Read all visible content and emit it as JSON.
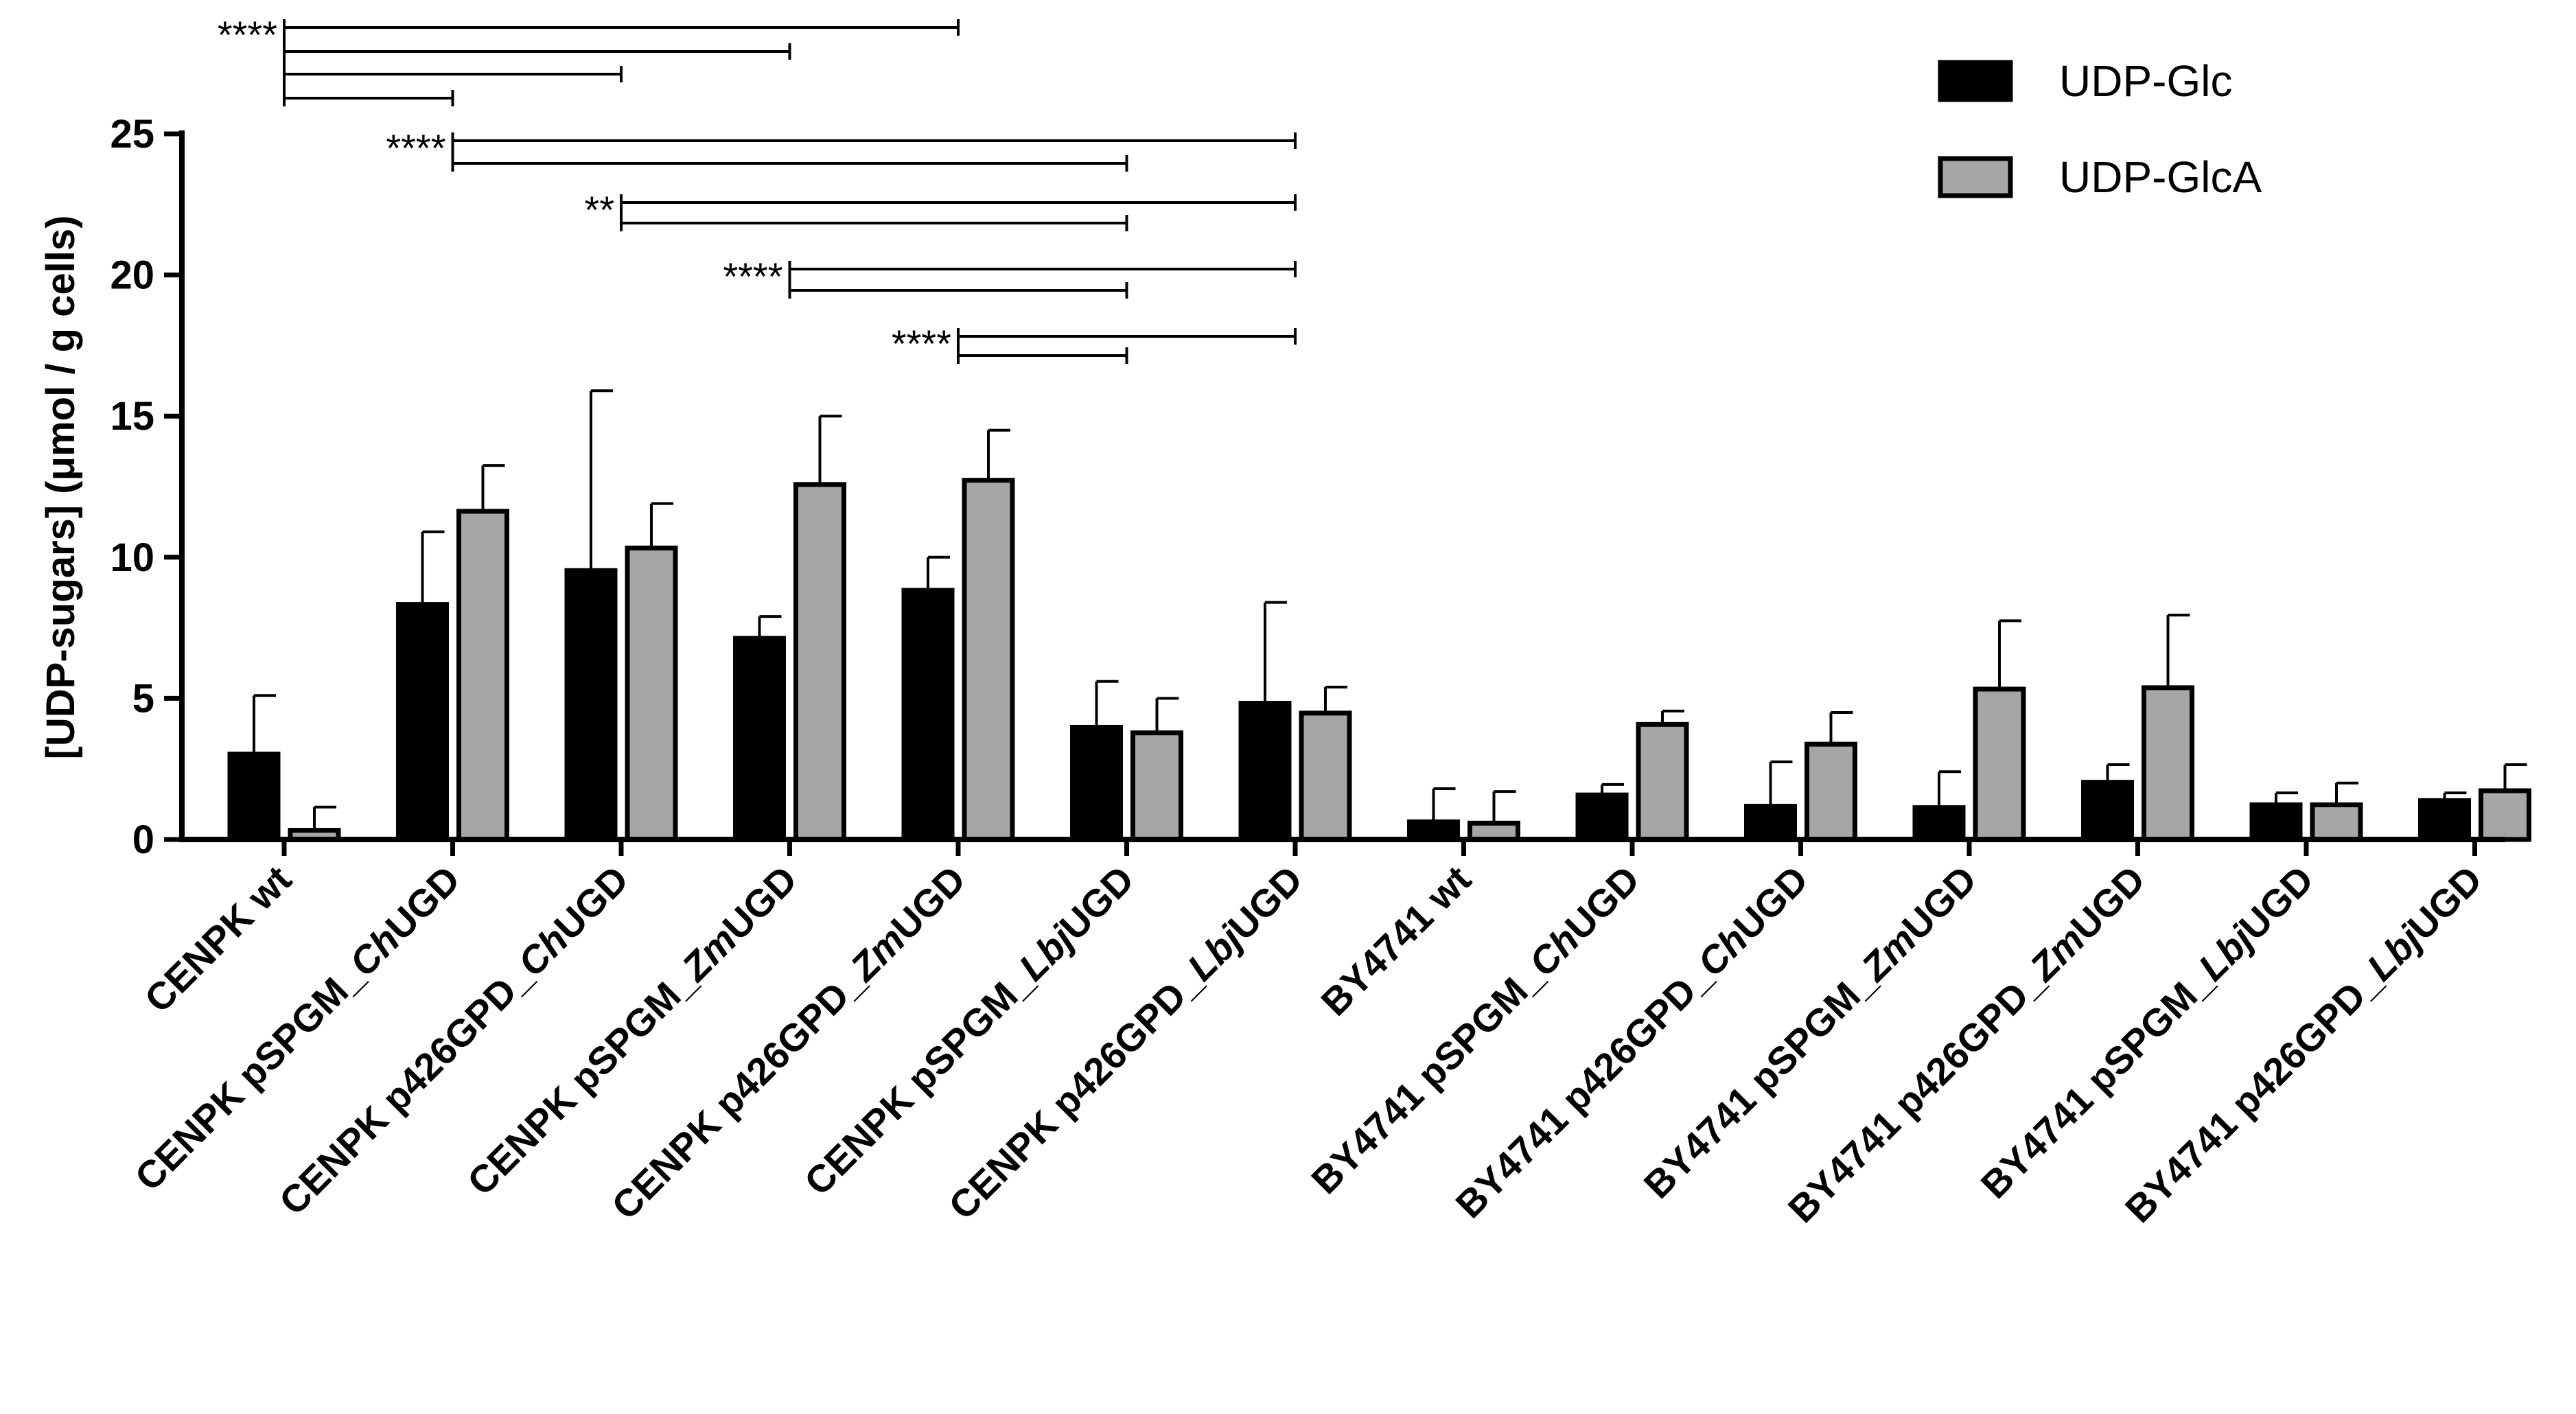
{
  "colors": {
    "udp_glc": "#000000",
    "udp_glca": "#a6a6a6",
    "axis": "#000000"
  },
  "chart_data": {
    "type": "bar",
    "title": "",
    "xlabel": "",
    "ylabel": "[UDP-sugars] (μmol / g cells)",
    "ylim": [
      0,
      25
    ],
    "yticks": [
      0,
      5,
      10,
      15,
      20,
      25
    ],
    "legend_position": "top-right",
    "categories": [
      {
        "label": "CENPK wt",
        "parts": [
          {
            "t": "CENPK wt",
            "i": false
          }
        ]
      },
      {
        "label": "CENPK pSPGM_ChUGD",
        "parts": [
          {
            "t": "CENPK pSPGM_",
            "i": false
          },
          {
            "t": "Ch",
            "i": true
          },
          {
            "t": "UGD",
            "i": false
          }
        ]
      },
      {
        "label": "CENPK p426GPD_ChUGD",
        "parts": [
          {
            "t": "CENPK p426GPD_",
            "i": false
          },
          {
            "t": "Ch",
            "i": true
          },
          {
            "t": "UGD",
            "i": false
          }
        ]
      },
      {
        "label": "CENPK pSPGM_ZmUGD",
        "parts": [
          {
            "t": "CENPK pSPGM_",
            "i": false
          },
          {
            "t": "Zm",
            "i": true
          },
          {
            "t": "UGD",
            "i": false
          }
        ]
      },
      {
        "label": "CENPK p426GPD_ZmUGD",
        "parts": [
          {
            "t": "CENPK p426GPD_",
            "i": false
          },
          {
            "t": "Zm",
            "i": true
          },
          {
            "t": "UGD",
            "i": false
          }
        ]
      },
      {
        "label": "CENPK pSPGM_LbjUGD",
        "parts": [
          {
            "t": "CENPK pSPGM_",
            "i": false
          },
          {
            "t": "Lbj",
            "i": true
          },
          {
            "t": "UGD",
            "i": false
          }
        ]
      },
      {
        "label": "CENPK p426GPD_LbjUGD",
        "parts": [
          {
            "t": "CENPK p426GPD_",
            "i": false
          },
          {
            "t": "Lbj",
            "i": true
          },
          {
            "t": "UGD",
            "i": false
          }
        ]
      },
      {
        "label": "BY4741 wt",
        "parts": [
          {
            "t": "BY4741 wt",
            "i": false
          }
        ]
      },
      {
        "label": "BY4741 pSPGM_ChUGD",
        "parts": [
          {
            "t": "BY4741 pSPGM_",
            "i": false
          },
          {
            "t": "Ch",
            "i": true
          },
          {
            "t": "UGD",
            "i": false
          }
        ]
      },
      {
        "label": "BY4741 p426GPD_ChUGD",
        "parts": [
          {
            "t": "BY4741 p426GPD_",
            "i": false
          },
          {
            "t": "Ch",
            "i": true
          },
          {
            "t": "UGD",
            "i": false
          }
        ]
      },
      {
        "label": "BY4741 pSPGM_ZmUGD",
        "parts": [
          {
            "t": "BY4741 pSPGM_",
            "i": false
          },
          {
            "t": "Zm",
            "i": true
          },
          {
            "t": "UGD",
            "i": false
          }
        ]
      },
      {
        "label": "BY4741 p426GPD_ZmUGD",
        "parts": [
          {
            "t": "BY4741 p426GPD_",
            "i": false
          },
          {
            "t": "Zm",
            "i": true
          },
          {
            "t": "UGD",
            "i": false
          }
        ]
      },
      {
        "label": "BY4741 pSPGM_LbjUGD",
        "parts": [
          {
            "t": "BY4741 pSPGM_",
            "i": false
          },
          {
            "t": "Lbj",
            "i": true
          },
          {
            "t": "UGD",
            "i": false
          }
        ]
      },
      {
        "label": "BY4741 p426GPD_LbjUGD",
        "parts": [
          {
            "t": "BY4741 p426GPD_",
            "i": false
          },
          {
            "t": "Lbj",
            "i": true
          },
          {
            "t": "UGD",
            "i": false
          }
        ]
      }
    ],
    "series": [
      {
        "name": "UDP-Glc",
        "color_key": "udp_glc",
        "values": [
          3.1,
          8.4,
          9.6,
          7.2,
          8.9,
          4.05,
          4.9,
          0.7,
          1.65,
          1.25,
          1.2,
          2.1,
          1.3,
          1.45
        ],
        "errors": [
          2.0,
          2.5,
          6.3,
          0.7,
          1.1,
          1.55,
          3.5,
          1.1,
          0.3,
          1.5,
          1.2,
          0.55,
          0.35,
          0.2
        ]
      },
      {
        "name": "UDP-GlcA",
        "color_key": "udp_glca",
        "values": [
          0.4,
          11.7,
          10.4,
          12.65,
          12.8,
          3.85,
          4.55,
          0.65,
          4.15,
          3.45,
          5.4,
          5.45,
          1.3,
          1.8
        ],
        "errors": [
          0.75,
          1.55,
          1.5,
          2.35,
          1.7,
          1.15,
          0.85,
          1.05,
          0.4,
          1.05,
          2.35,
          2.5,
          0.7,
          0.85
        ]
      }
    ],
    "significance": [
      {
        "label": "****",
        "from": 0,
        "to": [
          4,
          3,
          2,
          1
        ]
      },
      {
        "label": "****",
        "from": 1,
        "to": [
          6,
          5
        ]
      },
      {
        "label": "**",
        "from": 2,
        "to": [
          6,
          5
        ]
      },
      {
        "label": "****",
        "from": 3,
        "to": [
          6,
          5
        ]
      },
      {
        "label": "****",
        "from": 4,
        "to": [
          6,
          5
        ]
      }
    ]
  }
}
